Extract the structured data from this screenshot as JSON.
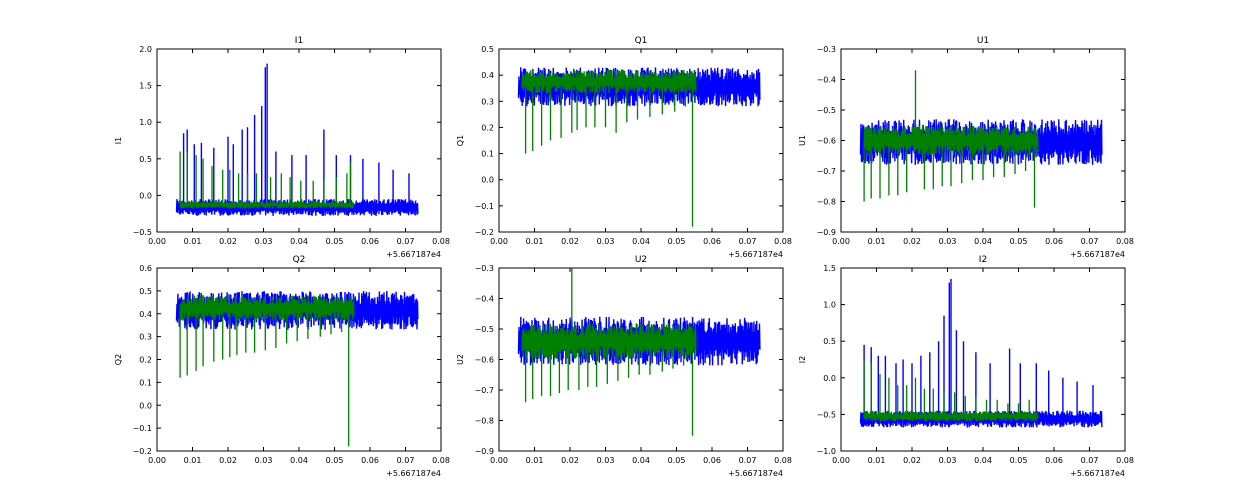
{
  "figure": {
    "background": "#ffffff",
    "series_colors": {
      "blue": "#0000ff",
      "green": "#008000"
    }
  },
  "chart_data": [
    {
      "type": "line",
      "title": "I1",
      "ylabel": "I1",
      "xlim": [
        0.0,
        0.08
      ],
      "ylim": [
        -0.5,
        2.0
      ],
      "x_offset_label": "+5.667187e4",
      "xticks": [
        "0.00",
        "0.01",
        "0.02",
        "0.03",
        "0.04",
        "0.05",
        "0.06",
        "0.07",
        "0.08"
      ],
      "yticks": [
        "−0.5",
        "0.0",
        "0.5",
        "1.0",
        "1.5",
        "2.0"
      ],
      "ytick_values": [
        -0.5,
        0.0,
        0.5,
        1.0,
        1.5,
        2.0
      ],
      "grid": false,
      "series": [
        {
          "color": "#0000ff",
          "x_range": [
            0.0055,
            0.0735
          ],
          "band": [
            -0.28,
            -0.05
          ],
          "spikes": [
            [
              0.0075,
              0.85
            ],
            [
              0.0085,
              0.9
            ],
            [
              0.0105,
              0.7
            ],
            [
              0.0125,
              0.72
            ],
            [
              0.016,
              0.65
            ],
            [
              0.02,
              0.8
            ],
            [
              0.0215,
              0.7
            ],
            [
              0.024,
              0.9
            ],
            [
              0.0255,
              0.93
            ],
            [
              0.0275,
              1.1
            ],
            [
              0.0295,
              1.22
            ],
            [
              0.0305,
              1.75
            ],
            [
              0.031,
              1.8
            ],
            [
              0.0335,
              0.6
            ],
            [
              0.038,
              0.55
            ],
            [
              0.042,
              0.55
            ],
            [
              0.047,
              0.9
            ],
            [
              0.0505,
              0.55
            ],
            [
              0.0545,
              0.55
            ],
            [
              0.058,
              0.5
            ],
            [
              0.0625,
              0.45
            ],
            [
              0.0665,
              0.35
            ],
            [
              0.071,
              0.3
            ]
          ]
        },
        {
          "color": "#008000",
          "x_range": [
            0.0065,
            0.0555
          ],
          "band": [
            -0.18,
            -0.08
          ],
          "spikes": [
            [
              0.0065,
              0.6
            ],
            [
              0.0085,
              0.6
            ],
            [
              0.011,
              0.55
            ],
            [
              0.013,
              0.5
            ],
            [
              0.0155,
              0.4
            ],
            [
              0.0185,
              0.35
            ],
            [
              0.0205,
              0.35
            ],
            [
              0.023,
              0.3
            ],
            [
              0.0255,
              0.3
            ],
            [
              0.028,
              0.3
            ],
            [
              0.032,
              0.25
            ],
            [
              0.035,
              0.3
            ],
            [
              0.0375,
              0.25
            ],
            [
              0.0405,
              0.2
            ],
            [
              0.044,
              0.2
            ],
            [
              0.047,
              0.2
            ],
            [
              0.0505,
              0.25
            ],
            [
              0.0535,
              0.3
            ],
            [
              0.0545,
              0.45
            ]
          ]
        }
      ]
    },
    {
      "type": "line",
      "title": "Q1",
      "ylabel": "Q1",
      "xlim": [
        0.0,
        0.08
      ],
      "ylim": [
        -0.2,
        0.5
      ],
      "x_offset_label": "+5.667187e4",
      "xticks": [
        "0.00",
        "0.01",
        "0.02",
        "0.03",
        "0.04",
        "0.05",
        "0.06",
        "0.07",
        "0.08"
      ],
      "yticks": [
        "−0.2",
        "−0.1",
        "0.0",
        "0.1",
        "0.2",
        "0.3",
        "0.4",
        "0.5"
      ],
      "ytick_values": [
        -0.2,
        -0.1,
        0.0,
        0.1,
        0.2,
        0.3,
        0.4,
        0.5
      ],
      "grid": false,
      "series": [
        {
          "color": "#0000ff",
          "x_range": [
            0.0055,
            0.0735
          ],
          "band": [
            0.28,
            0.43
          ],
          "spikes": []
        },
        {
          "color": "#008000",
          "x_range": [
            0.0065,
            0.0555
          ],
          "band": [
            0.33,
            0.42
          ],
          "spikes": [
            [
              0.0075,
              0.1
            ],
            [
              0.0095,
              0.11
            ],
            [
              0.012,
              0.13
            ],
            [
              0.0145,
              0.15
            ],
            [
              0.0175,
              0.16
            ],
            [
              0.0205,
              0.18
            ],
            [
              0.022,
              0.19
            ],
            [
              0.0245,
              0.2
            ],
            [
              0.027,
              0.2
            ],
            [
              0.03,
              0.2
            ],
            [
              0.033,
              0.18
            ],
            [
              0.036,
              0.22
            ],
            [
              0.039,
              0.23
            ],
            [
              0.0425,
              0.24
            ],
            [
              0.046,
              0.25
            ],
            [
              0.0495,
              0.26
            ],
            [
              0.0525,
              0.28
            ],
            [
              0.0545,
              -0.18
            ]
          ]
        }
      ]
    },
    {
      "type": "line",
      "title": "U1",
      "ylabel": "U1",
      "xlim": [
        0.0,
        0.08
      ],
      "ylim": [
        -0.9,
        -0.3
      ],
      "x_offset_label": "+5.667187e4",
      "xticks": [
        "0.00",
        "0.01",
        "0.02",
        "0.03",
        "0.04",
        "0.05",
        "0.06",
        "0.07",
        "0.08"
      ],
      "yticks": [
        "−0.9",
        "−0.8",
        "−0.7",
        "−0.6",
        "−0.5",
        "−0.4",
        "−0.3"
      ],
      "ytick_values": [
        -0.9,
        -0.8,
        -0.7,
        -0.6,
        -0.5,
        -0.4,
        -0.3
      ],
      "grid": false,
      "series": [
        {
          "color": "#0000ff",
          "x_range": [
            0.0055,
            0.0735
          ],
          "band": [
            -0.68,
            -0.53
          ],
          "spikes": []
        },
        {
          "color": "#008000",
          "x_range": [
            0.0065,
            0.0555
          ],
          "band": [
            -0.65,
            -0.55
          ],
          "spikes": [
            [
              0.0065,
              -0.8
            ],
            [
              0.0085,
              -0.79
            ],
            [
              0.011,
              -0.79
            ],
            [
              0.0135,
              -0.78
            ],
            [
              0.016,
              -0.78
            ],
            [
              0.0185,
              -0.77
            ],
            [
              0.021,
              -0.37
            ],
            [
              0.0235,
              -0.76
            ],
            [
              0.026,
              -0.76
            ],
            [
              0.0285,
              -0.75
            ],
            [
              0.031,
              -0.75
            ],
            [
              0.034,
              -0.74
            ],
            [
              0.037,
              -0.73
            ],
            [
              0.04,
              -0.73
            ],
            [
              0.043,
              -0.72
            ],
            [
              0.046,
              -0.72
            ],
            [
              0.049,
              -0.71
            ],
            [
              0.052,
              -0.7
            ],
            [
              0.0545,
              -0.82
            ]
          ]
        }
      ]
    },
    {
      "type": "line",
      "title": "Q2",
      "ylabel": "Q2",
      "xlim": [
        0.0,
        0.08
      ],
      "ylim": [
        -0.2,
        0.6
      ],
      "x_offset_label": "+5.667187e4",
      "xticks": [
        "0.00",
        "0.01",
        "0.02",
        "0.03",
        "0.04",
        "0.05",
        "0.06",
        "0.07",
        "0.08"
      ],
      "yticks": [
        "−0.2",
        "−0.1",
        "0.0",
        "0.1",
        "0.2",
        "0.3",
        "0.4",
        "0.5",
        "0.6"
      ],
      "ytick_values": [
        -0.2,
        -0.1,
        0.0,
        0.1,
        0.2,
        0.3,
        0.4,
        0.5,
        0.6
      ],
      "grid": false,
      "series": [
        {
          "color": "#0000ff",
          "x_range": [
            0.0055,
            0.0735
          ],
          "band": [
            0.33,
            0.5
          ],
          "spikes": []
        },
        {
          "color": "#008000",
          "x_range": [
            0.0065,
            0.0555
          ],
          "band": [
            0.37,
            0.48
          ],
          "spikes": [
            [
              0.0065,
              0.12
            ],
            [
              0.0085,
              0.13
            ],
            [
              0.011,
              0.15
            ],
            [
              0.013,
              0.17
            ],
            [
              0.016,
              0.19
            ],
            [
              0.0185,
              0.2
            ],
            [
              0.0205,
              0.21
            ],
            [
              0.0225,
              0.22
            ],
            [
              0.025,
              0.23
            ],
            [
              0.0275,
              0.23
            ],
            [
              0.0305,
              0.24
            ],
            [
              0.0335,
              0.25
            ],
            [
              0.0365,
              0.27
            ],
            [
              0.0395,
              0.28
            ],
            [
              0.0425,
              0.29
            ],
            [
              0.046,
              0.3
            ],
            [
              0.049,
              0.31
            ],
            [
              0.052,
              0.32
            ],
            [
              0.054,
              -0.18
            ]
          ]
        }
      ]
    },
    {
      "type": "line",
      "title": "U2",
      "ylabel": "U2",
      "xlim": [
        0.0,
        0.08
      ],
      "ylim": [
        -0.9,
        -0.3
      ],
      "x_offset_label": "+5.667187e4",
      "xticks": [
        "0.00",
        "0.01",
        "0.02",
        "0.03",
        "0.04",
        "0.05",
        "0.06",
        "0.07",
        "0.08"
      ],
      "yticks": [
        "−0.9",
        "−0.8",
        "−0.7",
        "−0.6",
        "−0.5",
        "−0.4",
        "−0.3"
      ],
      "ytick_values": [
        -0.9,
        -0.8,
        -0.7,
        -0.6,
        -0.5,
        -0.4,
        -0.3
      ],
      "grid": false,
      "series": [
        {
          "color": "#0000ff",
          "x_range": [
            0.0055,
            0.0735
          ],
          "band": [
            -0.62,
            -0.46
          ],
          "spikes": []
        },
        {
          "color": "#008000",
          "x_range": [
            0.0065,
            0.0555
          ],
          "band": [
            -0.6,
            -0.48
          ],
          "spikes": [
            [
              0.0075,
              -0.74
            ],
            [
              0.0095,
              -0.73
            ],
            [
              0.012,
              -0.72
            ],
            [
              0.0145,
              -0.72
            ],
            [
              0.017,
              -0.71
            ],
            [
              0.0195,
              -0.7
            ],
            [
              0.0205,
              -0.3
            ],
            [
              0.0225,
              -0.7
            ],
            [
              0.025,
              -0.69
            ],
            [
              0.0275,
              -0.69
            ],
            [
              0.0305,
              -0.68
            ],
            [
              0.0335,
              -0.67
            ],
            [
              0.0365,
              -0.66
            ],
            [
              0.0395,
              -0.65
            ],
            [
              0.0425,
              -0.65
            ],
            [
              0.046,
              -0.64
            ],
            [
              0.049,
              -0.63
            ],
            [
              0.052,
              -0.62
            ],
            [
              0.0545,
              -0.85
            ]
          ]
        }
      ]
    },
    {
      "type": "line",
      "title": "I2",
      "ylabel": "I2",
      "xlim": [
        0.0,
        0.08
      ],
      "ylim": [
        -1.0,
        1.5
      ],
      "x_offset_label": "+5.667187e4",
      "xticks": [
        "0.00",
        "0.01",
        "0.02",
        "0.03",
        "0.04",
        "0.05",
        "0.06",
        "0.07",
        "0.08"
      ],
      "yticks": [
        "−1.0",
        "−0.5",
        "0.0",
        "0.5",
        "1.0",
        "1.5"
      ],
      "ytick_values": [
        -1.0,
        -0.5,
        0.0,
        0.5,
        1.0,
        1.5
      ],
      "grid": false,
      "series": [
        {
          "color": "#0000ff",
          "x_range": [
            0.0055,
            0.0735
          ],
          "band": [
            -0.68,
            -0.45
          ],
          "spikes": [
            [
              0.0065,
              0.45
            ],
            [
              0.0085,
              0.42
            ],
            [
              0.0105,
              0.3
            ],
            [
              0.0125,
              0.3
            ],
            [
              0.0155,
              0.2
            ],
            [
              0.0175,
              0.25
            ],
            [
              0.02,
              0.2
            ],
            [
              0.0225,
              0.3
            ],
            [
              0.025,
              0.35
            ],
            [
              0.0275,
              0.5
            ],
            [
              0.029,
              0.85
            ],
            [
              0.0305,
              1.3
            ],
            [
              0.031,
              1.35
            ],
            [
              0.0325,
              0.65
            ],
            [
              0.0345,
              0.5
            ],
            [
              0.038,
              0.35
            ],
            [
              0.042,
              0.2
            ],
            [
              0.0475,
              0.4
            ],
            [
              0.0505,
              0.2
            ],
            [
              0.055,
              0.2
            ],
            [
              0.0585,
              0.1
            ],
            [
              0.0625,
              0.0
            ],
            [
              0.0665,
              -0.05
            ],
            [
              0.071,
              -0.1
            ]
          ]
        },
        {
          "color": "#008000",
          "x_range": [
            0.0065,
            0.0555
          ],
          "band": [
            -0.6,
            -0.45
          ],
          "spikes": [
            [
              0.0065,
              0.25
            ],
            [
              0.0085,
              0.2
            ],
            [
              0.011,
              0.05
            ],
            [
              0.0135,
              0.0
            ],
            [
              0.016,
              -0.1
            ],
            [
              0.0185,
              -0.1
            ],
            [
              0.021,
              0.0
            ],
            [
              0.0235,
              -0.15
            ],
            [
              0.026,
              -0.15
            ],
            [
              0.029,
              -0.2
            ],
            [
              0.032,
              -0.2
            ],
            [
              0.035,
              -0.25
            ],
            [
              0.038,
              -0.25
            ],
            [
              0.041,
              -0.3
            ],
            [
              0.044,
              -0.3
            ],
            [
              0.047,
              -0.35
            ],
            [
              0.05,
              -0.35
            ],
            [
              0.053,
              -0.3
            ]
          ]
        }
      ]
    }
  ]
}
